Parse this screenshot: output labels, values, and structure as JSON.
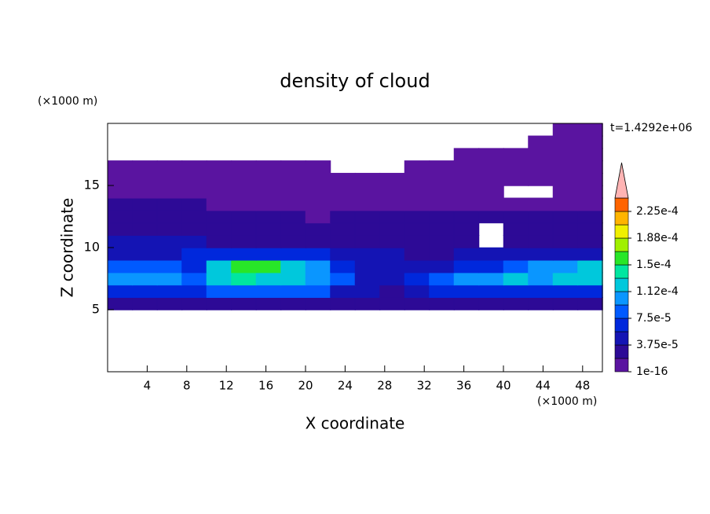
{
  "chart_data": {
    "type": "contour",
    "title": "density of cloud",
    "annotation": "t=1.4292e+06",
    "x_label": "X coordinate",
    "y_label": "Z coordinate",
    "x_unit": "(×1000 m)",
    "y_unit": "(×1000 m)",
    "xlim": [
      0,
      50
    ],
    "ylim": [
      0,
      20
    ],
    "xticks": [
      4,
      8,
      12,
      16,
      20,
      24,
      28,
      32,
      36,
      40,
      44,
      48
    ],
    "yticks": [
      5,
      10,
      15
    ],
    "field": {
      "x": [
        1.25,
        3.75,
        6.25,
        8.75,
        11.25,
        13.75,
        16.25,
        18.75,
        21.25,
        23.75,
        26.25,
        28.75,
        31.25,
        33.75,
        36.25,
        38.75,
        41.25,
        43.75,
        46.25,
        48.75
      ],
      "z": [
        5.5,
        6.5,
        7.5,
        8.5,
        9.5,
        10.5,
        11.5,
        12.5,
        13.5,
        14.5,
        15.5,
        16.5,
        17.5,
        18.5,
        19.5
      ],
      "values": [
        [
          3e-05,
          3e-05,
          3e-05,
          3e-05,
          3e-05,
          3e-05,
          3e-05,
          3e-05,
          3e-05,
          3e-05,
          2e-05,
          2e-05,
          3e-05,
          3e-05,
          3e-05,
          3e-05,
          3e-05,
          3e-05,
          3e-05,
          3e-05
        ],
        [
          7e-05,
          7e-05,
          7e-05,
          6e-05,
          8e-05,
          8e-05,
          8e-05,
          8e-05,
          8e-05,
          5e-05,
          4e-05,
          3e-05,
          5e-05,
          7e-05,
          7e-05,
          7e-05,
          7e-05,
          7e-05,
          7e-05,
          7e-05
        ],
        [
          0.00011,
          0.00011,
          0.00011,
          9e-05,
          0.00013,
          0.00014,
          0.00013,
          0.00012,
          0.00011,
          8e-05,
          5e-05,
          4e-05,
          6e-05,
          9e-05,
          0.00011,
          0.0001,
          0.000115,
          0.00011,
          0.00012,
          0.00013
        ],
        [
          8e-05,
          8e-05,
          8e-05,
          7e-05,
          0.00013,
          0.00016,
          0.00015,
          0.00012,
          0.0001,
          6e-05,
          4e-05,
          4e-05,
          4e-05,
          5e-05,
          7e-05,
          7e-05,
          9e-05,
          0.0001,
          0.00011,
          0.00012
        ],
        [
          5e-05,
          5e-05,
          5e-05,
          6e-05,
          6e-05,
          6e-05,
          6e-05,
          6e-05,
          6e-05,
          4e-05,
          4e-05,
          4e-05,
          3e-05,
          3e-05,
          4e-05,
          4e-05,
          4e-05,
          4e-05,
          4e-05,
          4e-05
        ],
        [
          4e-05,
          4e-05,
          4e-05,
          4e-05,
          3e-05,
          3e-05,
          3e-05,
          3e-05,
          3e-05,
          3e-05,
          3e-05,
          3e-05,
          3e-05,
          3e-05,
          3e-05,
          null,
          3e-05,
          3e-05,
          3e-05,
          3e-05
        ],
        [
          3e-05,
          3e-05,
          3e-05,
          3e-05,
          3e-05,
          3e-05,
          3e-05,
          2e-05,
          2e-05,
          2e-05,
          2e-05,
          2e-05,
          2e-05,
          2e-05,
          2e-05,
          null,
          2e-05,
          3e-05,
          3e-05,
          3e-05
        ],
        [
          2e-05,
          2e-05,
          2e-05,
          2e-05,
          2e-05,
          2e-05,
          2e-05,
          2e-05,
          1e-05,
          2e-05,
          2e-05,
          2e-05,
          2e-05,
          2e-05,
          2e-05,
          2e-05,
          2e-05,
          2e-05,
          2e-05,
          2e-05
        ],
        [
          2e-05,
          2e-05,
          2e-05,
          2e-05,
          1e-05,
          1e-05,
          1e-05,
          1e-05,
          1e-05,
          1e-05,
          1e-05,
          1e-05,
          1e-05,
          1e-05,
          1e-05,
          1e-05,
          1e-05,
          1e-05,
          1e-05,
          1e-05
        ],
        [
          1e-05,
          1e-05,
          1e-05,
          1e-05,
          1e-05,
          1e-05,
          1e-05,
          1e-05,
          1e-05,
          1e-05,
          1e-05,
          1e-05,
          1e-05,
          1e-05,
          1e-05,
          1e-05,
          null,
          null,
          1e-05,
          1e-05
        ],
        [
          1e-05,
          1e-05,
          1e-05,
          1e-05,
          1e-05,
          1e-05,
          1e-05,
          1e-05,
          1e-05,
          1e-05,
          1e-05,
          1e-05,
          1e-05,
          1e-05,
          1e-05,
          1e-05,
          1e-05,
          1e-05,
          1e-05,
          1e-05
        ],
        [
          1e-05,
          1e-05,
          1e-05,
          1e-05,
          1e-05,
          1e-05,
          1e-05,
          1e-05,
          1e-05,
          null,
          null,
          null,
          1e-05,
          1e-05,
          1e-05,
          1e-05,
          1e-05,
          1e-05,
          1e-05,
          1e-05
        ],
        [
          null,
          null,
          null,
          null,
          null,
          null,
          null,
          null,
          null,
          null,
          null,
          null,
          null,
          null,
          1e-05,
          1e-05,
          1e-05,
          1e-05,
          1e-05,
          1e-05
        ],
        [
          null,
          null,
          null,
          null,
          null,
          null,
          null,
          null,
          null,
          null,
          null,
          null,
          null,
          null,
          null,
          null,
          null,
          1e-05,
          1e-05,
          1e-05
        ],
        [
          null,
          null,
          null,
          null,
          null,
          null,
          null,
          null,
          null,
          null,
          null,
          null,
          null,
          null,
          null,
          null,
          null,
          null,
          1e-05,
          1e-05
        ]
      ]
    },
    "colorbar": {
      "levels": [
        1e-16,
        1.875e-05,
        3.75e-05,
        5.625e-05,
        7.5e-05,
        9.375e-05,
        0.0001125,
        0.00013125,
        0.00015,
        0.00016875,
        0.0001875,
        0.00020625,
        0.000225,
        0.00024375
      ],
      "colors": [
        "#5a14a0",
        "#2d0a96",
        "#1414b4",
        "#0028dc",
        "#005aff",
        "#0a96ff",
        "#00c8dc",
        "#00e6a0",
        "#28e628",
        "#a0f000",
        "#f0f000",
        "#ffb400",
        "#ff6400",
        "#ffb4b4"
      ],
      "ticks": [
        {
          "value": 1e-16,
          "label": "1e-16"
        },
        {
          "value": 3.75e-05,
          "label": "3.75e-5"
        },
        {
          "value": 7.5e-05,
          "label": "7.5e-5"
        },
        {
          "value": 0.0001125,
          "label": "1.12e-4"
        },
        {
          "value": 0.00015,
          "label": "1.5e-4"
        },
        {
          "value": 0.0001875,
          "label": "1.88e-4"
        },
        {
          "value": 0.000225,
          "label": "2.25e-4"
        }
      ]
    }
  }
}
